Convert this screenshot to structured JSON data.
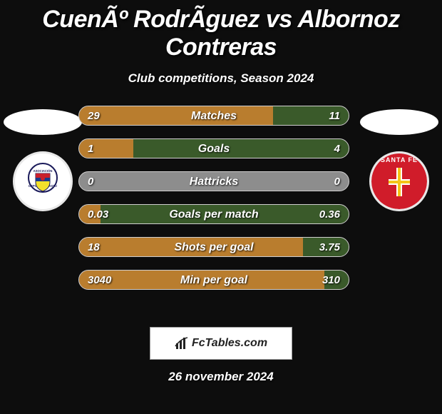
{
  "title": "CuenÃº RodrÃ­guez vs Albornoz Contreras",
  "subtitle": "Club competitions, Season 2024",
  "date_text": "26 november 2024",
  "site_label": "FcTables.com",
  "colors": {
    "bar_left_fill": "#b97d2e",
    "bar_right_fill": "#3a5a2a",
    "bar_track": "#8d8d8d",
    "row_border": "#d0cfcf"
  },
  "rows": [
    {
      "label": "Matches",
      "left_val": "29",
      "right_val": "11",
      "left_pct": 72,
      "right_pct": 28
    },
    {
      "label": "Goals",
      "left_val": "1",
      "right_val": "4",
      "left_pct": 20,
      "right_pct": 80
    },
    {
      "label": "Hattricks",
      "left_val": "0",
      "right_val": "0",
      "left_pct": 0,
      "right_pct": 0
    },
    {
      "label": "Goals per match",
      "left_val": "0.03",
      "right_val": "0.36",
      "left_pct": 8,
      "right_pct": 92
    },
    {
      "label": "Shots per goal",
      "left_val": "18",
      "right_val": "3.75",
      "left_pct": 83,
      "right_pct": 17
    },
    {
      "label": "Min per goal",
      "left_val": "3040",
      "right_val": "310",
      "left_pct": 91,
      "right_pct": 9
    }
  ],
  "crest_left_text": "ASOCIACIÓN DEPORTIVO PASTO",
  "crest_right_text": "SANTA FE"
}
